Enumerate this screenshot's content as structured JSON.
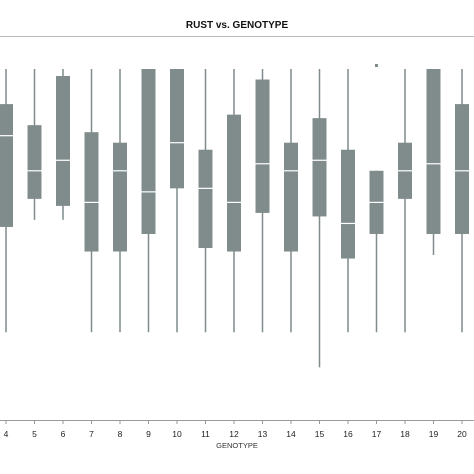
{
  "chart_data": {
    "type": "box",
    "title": "RUST vs. GENOTYPE",
    "xlabel": "GENOTYPE",
    "ylabel": "",
    "ylim": [
      0,
      100
    ],
    "grid": false,
    "color": "#7f8c8b",
    "median_color": "#ffffff",
    "categories": [
      "4",
      "5",
      "6",
      "7",
      "8",
      "9",
      "10",
      "11",
      "12",
      "13",
      "14",
      "15",
      "16",
      "17",
      "18",
      "19",
      "20"
    ],
    "boxes": [
      {
        "genotype": "4",
        "min": 25,
        "q1": 55,
        "median": 81,
        "q3": 90,
        "max": 100
      },
      {
        "genotype": "5",
        "min": 57,
        "q1": 63,
        "median": 71,
        "q3": 84,
        "max": 100
      },
      {
        "genotype": "6",
        "min": 57,
        "q1": 61,
        "median": 74,
        "q3": 98,
        "max": 100
      },
      {
        "genotype": "7",
        "min": 25,
        "q1": 48,
        "median": 62,
        "q3": 82,
        "max": 100
      },
      {
        "genotype": "8",
        "min": 25,
        "q1": 48,
        "median": 71,
        "q3": 79,
        "max": 100
      },
      {
        "genotype": "9",
        "min": 25,
        "q1": 53,
        "median": 65,
        "q3": 100,
        "max": 100
      },
      {
        "genotype": "10",
        "min": 25,
        "q1": 66,
        "median": 79,
        "q3": 100,
        "max": 100
      },
      {
        "genotype": "11",
        "min": 25,
        "q1": 49,
        "median": 66,
        "q3": 77,
        "max": 100
      },
      {
        "genotype": "12",
        "min": 25,
        "q1": 48,
        "median": 62,
        "q3": 87,
        "max": 100
      },
      {
        "genotype": "13",
        "min": 25,
        "q1": 59,
        "median": 73,
        "q3": 97,
        "max": 100
      },
      {
        "genotype": "14",
        "min": 25,
        "q1": 48,
        "median": 71,
        "q3": 79,
        "max": 100
      },
      {
        "genotype": "15",
        "min": 15,
        "q1": 58,
        "median": 74,
        "q3": 86,
        "max": 100
      },
      {
        "genotype": "16",
        "min": 25,
        "q1": 46,
        "median": 56,
        "q3": 77,
        "max": 100
      },
      {
        "genotype": "17",
        "min": 25,
        "q1": 53,
        "median": 62,
        "q3": 71,
        "max": 71,
        "outliers": [
          101
        ]
      },
      {
        "genotype": "18",
        "min": 25,
        "q1": 63,
        "median": 71,
        "q3": 79,
        "max": 100
      },
      {
        "genotype": "19",
        "min": 47,
        "q1": 53,
        "median": 73,
        "q3": 100,
        "max": 100
      },
      {
        "genotype": "20",
        "min": 25,
        "q1": 53,
        "median": 71,
        "q3": 90,
        "max": 100
      }
    ]
  }
}
